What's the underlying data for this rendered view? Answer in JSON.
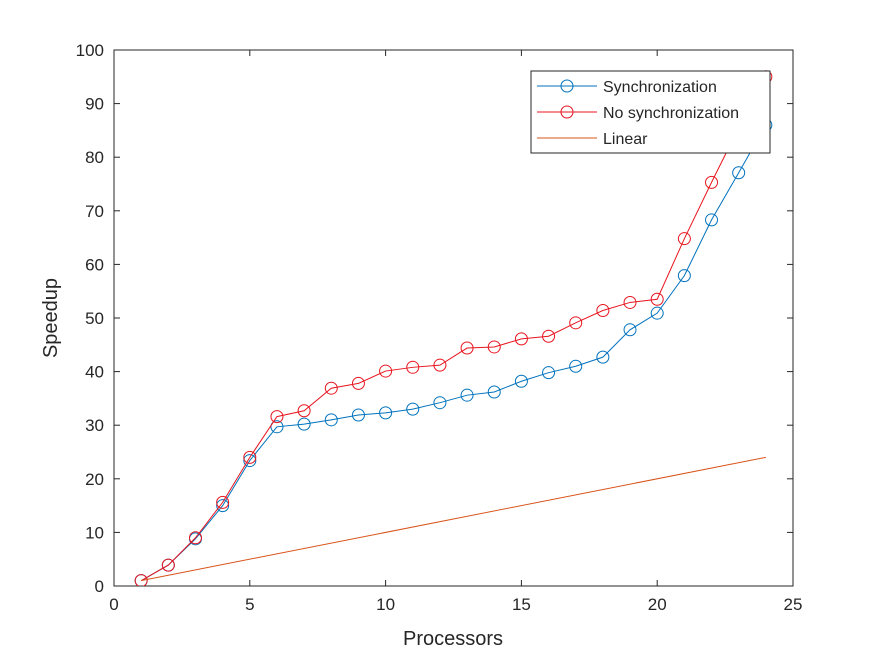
{
  "chart_data": {
    "type": "line",
    "title": "",
    "xlabel": "Processors",
    "ylabel": "Speedup",
    "xlim": [
      0,
      25
    ],
    "ylim": [
      0,
      100
    ],
    "xticks": [
      0,
      5,
      10,
      15,
      20,
      25
    ],
    "yticks": [
      0,
      10,
      20,
      30,
      40,
      50,
      60,
      70,
      80,
      90,
      100
    ],
    "grid": false,
    "legend_position": "top-right",
    "series": [
      {
        "name": "Synchronization",
        "color": "#0072BD",
        "marker": "circle",
        "x": [
          1,
          2,
          3,
          4,
          5,
          6,
          7,
          8,
          9,
          10,
          11,
          12,
          13,
          14,
          15,
          16,
          17,
          18,
          19,
          20,
          21,
          22,
          23,
          24
        ],
        "y": [
          1,
          3.9,
          8.8,
          15.0,
          23.4,
          29.7,
          30.2,
          31.0,
          31.9,
          32.3,
          33.0,
          34.2,
          35.6,
          36.2,
          38.2,
          39.8,
          41.0,
          42.7,
          47.8,
          50.9,
          57.9,
          68.3,
          77.1,
          86.0
        ]
      },
      {
        "name": "No synchronization",
        "color": "#E8141E",
        "marker": "circle",
        "x": [
          1,
          2,
          3,
          4,
          5,
          6,
          7,
          8,
          9,
          10,
          11,
          12,
          13,
          14,
          15,
          16,
          17,
          18,
          19,
          20,
          21,
          22,
          23,
          24
        ],
        "y": [
          1,
          3.9,
          9.0,
          15.6,
          24.0,
          31.6,
          32.7,
          36.9,
          37.8,
          40.1,
          40.8,
          41.2,
          44.4,
          44.6,
          46.1,
          46.6,
          49.1,
          51.4,
          52.9,
          53.5,
          64.8,
          75.3,
          85.5,
          95.0
        ]
      },
      {
        "name": "Linear",
        "color": "#D95319",
        "marker": "none",
        "x": [
          1,
          24
        ],
        "y": [
          1,
          24
        ]
      }
    ]
  }
}
